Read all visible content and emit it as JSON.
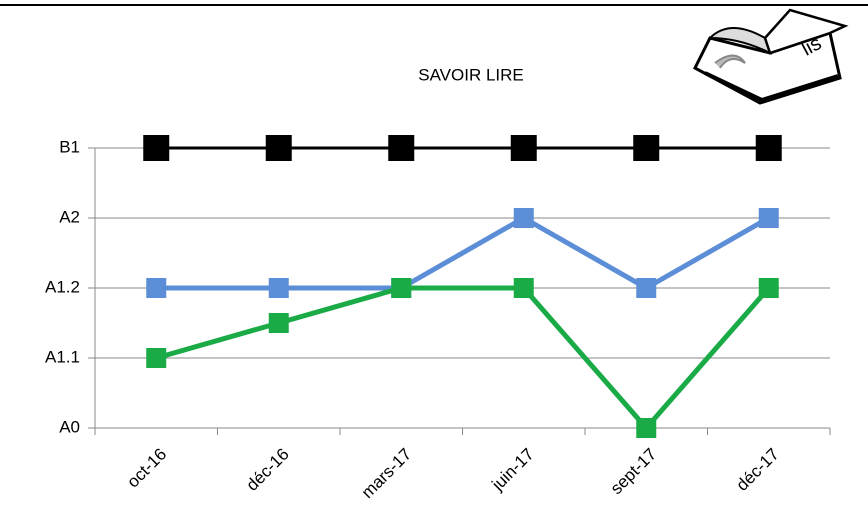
{
  "chart_data": {
    "type": "line",
    "title": "SAVOIR LIRE",
    "icon_text": "lis",
    "categories": [
      "oct-16",
      "déc-16",
      "mars-17",
      "juin-17",
      "sept-17",
      "déc-17"
    ],
    "series": [
      {
        "color": "#000000",
        "values": [
          4,
          4,
          4,
          4,
          4,
          4
        ]
      },
      {
        "color": "#5b8ed6",
        "values": [
          2,
          2,
          2,
          3,
          2,
          3
        ]
      },
      {
        "color": "#1aab47",
        "values": [
          1,
          1.5,
          2,
          2,
          0,
          2
        ]
      }
    ],
    "ylim": [
      0,
      4
    ],
    "yticks": [
      {
        "value": 0,
        "label": "A0"
      },
      {
        "value": 1,
        "label": "A1.1"
      },
      {
        "value": 2,
        "label": "A1.2"
      },
      {
        "value": 3,
        "label": "A2"
      },
      {
        "value": 4,
        "label": "B1"
      }
    ],
    "grid": true
  }
}
